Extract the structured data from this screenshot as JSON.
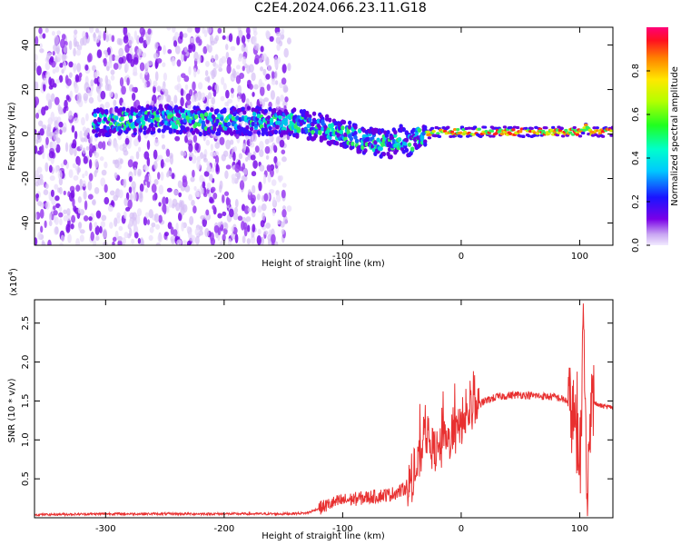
{
  "title": "C2E4.2024.066.23.11.G18",
  "chart_data": [
    {
      "type": "heatmap",
      "xlabel": "Height of straight line (km)",
      "ylabel": "Frequency (Hz)",
      "xlim": [
        -360,
        128
      ],
      "ylim": [
        -50,
        48
      ],
      "xticks": [
        -300,
        -200,
        -100,
        0,
        100
      ],
      "yticks": [
        -40,
        -20,
        0,
        20,
        40
      ],
      "colorbar": {
        "label": "Normalized spectral amplitude",
        "range": [
          0.0,
          1.0
        ],
        "ticks": [
          0.0,
          0.2,
          0.4,
          0.6,
          0.8
        ]
      },
      "ridge": {
        "x": [
          -310,
          -280,
          -250,
          -220,
          -200,
          -170,
          -140,
          -120,
          -100,
          -80,
          -60,
          -50,
          -42,
          -38,
          -30,
          -20,
          0,
          20,
          40,
          60,
          80,
          90,
          100,
          105,
          110,
          128
        ],
        "y": [
          5,
          6,
          7,
          6,
          6,
          6,
          5,
          3,
          0,
          -3,
          -5,
          -2,
          -5,
          -1,
          0,
          1,
          1,
          1,
          1,
          1,
          1,
          1,
          1,
          3,
          1,
          1
        ]
      }
    },
    {
      "type": "line",
      "xlabel": "Height of straight line (km)",
      "ylabel": "SNR (10 * v/v)",
      "yscale_label": "(x10",
      "yscale_exp": "4",
      "xlim": [
        -360,
        128
      ],
      "ylim": [
        0,
        2.8
      ],
      "xticks": [
        -300,
        -200,
        -100,
        0,
        100
      ],
      "yticks": [
        0.5,
        1.0,
        1.5,
        2.0,
        2.5
      ],
      "color": "#e83030",
      "series": [
        {
          "x": [
            -360,
            -300,
            -250,
            -200,
            -150,
            -130,
            -120,
            -110,
            -100,
            -90,
            -80,
            -70,
            -60,
            -50,
            -40,
            -35,
            -30,
            -25,
            -20,
            -15,
            -10,
            -5,
            0,
            5,
            10,
            20,
            30,
            40,
            50,
            60,
            70,
            80,
            90,
            95,
            100,
            103,
            106,
            110,
            115,
            120,
            128
          ],
          "y": [
            0.04,
            0.05,
            0.05,
            0.05,
            0.05,
            0.06,
            0.12,
            0.18,
            0.22,
            0.24,
            0.26,
            0.28,
            0.3,
            0.35,
            0.5,
            0.75,
            1.1,
            0.9,
            0.85,
            0.9,
            1.0,
            1.05,
            1.2,
            1.3,
            1.4,
            1.5,
            1.55,
            1.57,
            1.58,
            1.57,
            1.56,
            1.55,
            1.5,
            1.3,
            0.4,
            2.4,
            0.3,
            1.5,
            1.45,
            1.43,
            1.42
          ]
        }
      ]
    }
  ]
}
